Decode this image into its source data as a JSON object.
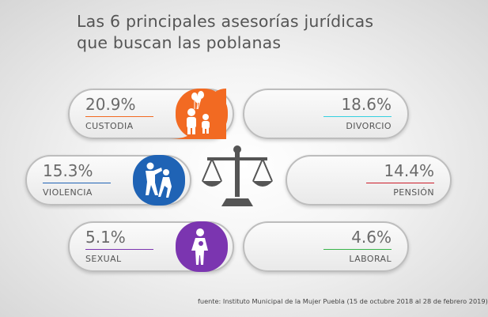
{
  "title": {
    "line1": "Las 6 principales asesorías jurídicas",
    "line2": "que buscan las poblanas"
  },
  "colors": {
    "custodia": "#f26a22",
    "divorcio": "#35d1e0",
    "violencia": "#1f63b5",
    "pension": "#cc1c2a",
    "sexual": "#7b35b0",
    "laboral": "#39b54a"
  },
  "icons": {
    "custodia": "parent-child-balloons-icon",
    "divorcio": "broken-heart-couple-icon",
    "violencia": "domestic-violence-icon",
    "pension": "check-payment-icon",
    "sexual": "woman-harassment-icon",
    "laboral": "briefcase-icon",
    "center": "justice-scale-icon"
  },
  "chart_data": {
    "type": "table",
    "title": "Las 6 principales asesorías jurídicas que buscan las poblanas",
    "categories": [
      "CUSTODIA",
      "DIVORCIO",
      "VIOLENCIA",
      "PENSIÓN",
      "SEXUAL",
      "LABORAL"
    ],
    "values": [
      20.9,
      18.6,
      15.3,
      14.4,
      5.1,
      4.6
    ],
    "unit": "%",
    "labels": {
      "custodia": {
        "pct": "20.9%",
        "name": "CUSTODIA"
      },
      "divorcio": {
        "pct": "18.6%",
        "name": "DIVORCIO"
      },
      "violencia": {
        "pct": "15.3%",
        "name": "VIOLENCIA"
      },
      "pension": {
        "pct": "14.4%",
        "name": "PENSIÓN"
      },
      "sexual": {
        "pct": "5.1%",
        "name": "SEXUAL"
      },
      "laboral": {
        "pct": "4.6%",
        "name": "LABORAL"
      }
    }
  },
  "source": "fuente: Instituto Municipal de la Mujer Puebla (15 de octubre 2018 al 28 de febrero 2019)"
}
